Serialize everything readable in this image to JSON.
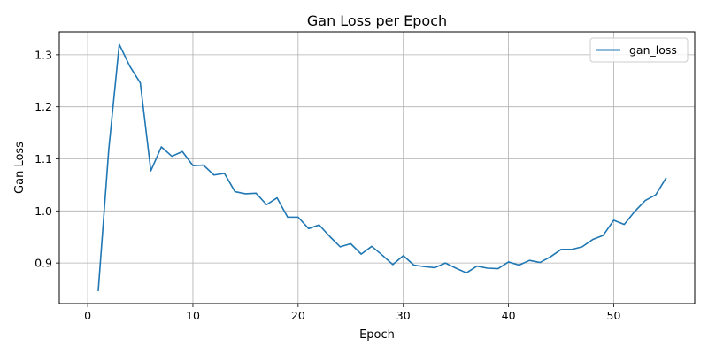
{
  "chart_data": {
    "type": "line",
    "title": "Gan Loss per Epoch",
    "xlabel": "Epoch",
    "ylabel": "Gan Loss",
    "xlim": [
      -2.7,
      57.7
    ],
    "ylim": [
      0.822,
      1.344
    ],
    "xticks": [
      0,
      10,
      20,
      30,
      40,
      50
    ],
    "yticks": [
      0.9,
      1.0,
      1.1,
      1.2,
      1.3
    ],
    "ytick_labels": [
      "0.9",
      "1.0",
      "1.1",
      "1.2",
      "1.3"
    ],
    "grid": true,
    "legend_position": "top-right",
    "series": [
      {
        "name": "gan_loss",
        "color": "#1f77b4",
        "x": [
          1,
          2,
          3,
          4,
          5,
          6,
          7,
          8,
          9,
          10,
          11,
          12,
          13,
          14,
          15,
          16,
          17,
          18,
          19,
          20,
          21,
          22,
          23,
          24,
          25,
          26,
          27,
          28,
          29,
          30,
          31,
          32,
          33,
          34,
          35,
          36,
          37,
          38,
          39,
          40,
          41,
          42,
          43,
          44,
          45,
          46,
          47,
          48,
          49,
          50,
          51,
          52,
          53,
          54,
          55
        ],
        "values": [
          0.846,
          1.118,
          1.32,
          1.278,
          1.246,
          1.077,
          1.123,
          1.105,
          1.114,
          1.087,
          1.088,
          1.069,
          1.072,
          1.037,
          1.033,
          1.034,
          1.012,
          1.025,
          0.988,
          0.988,
          0.966,
          0.973,
          0.951,
          0.931,
          0.937,
          0.917,
          0.932,
          0.915,
          0.897,
          0.914,
          0.896,
          0.893,
          0.891,
          0.9,
          0.89,
          0.881,
          0.894,
          0.89,
          0.889,
          0.902,
          0.896,
          0.905,
          0.901,
          0.912,
          0.926,
          0.926,
          0.931,
          0.945,
          0.953,
          0.982,
          0.974,
          0.999,
          1.02,
          1.031,
          1.064
        ]
      }
    ]
  }
}
